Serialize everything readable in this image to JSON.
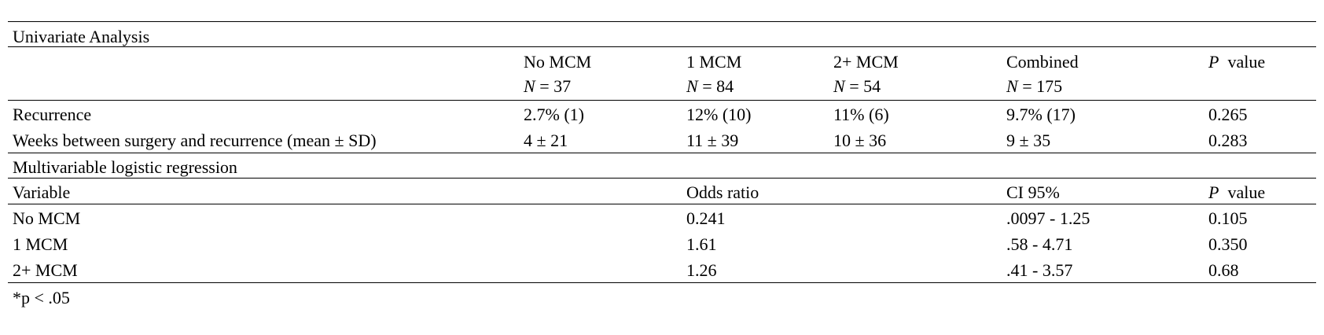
{
  "univariate": {
    "title": "Univariate Analysis",
    "headers": {
      "no_mcm": "No MCM",
      "no_mcm_n": "= 37",
      "one_mcm": "1 MCM",
      "one_mcm_n": "= 84",
      "two_mcm": "2+ MCM",
      "two_mcm_n": "= 54",
      "combined": "Combined",
      "combined_n": "= 175",
      "n_symbol": "N",
      "p_symbol": "P",
      "p_value": "value"
    },
    "rows": [
      {
        "label": "Recurrence",
        "no_mcm": "2.7% (1)",
        "one_mcm": "12% (10)",
        "two_mcm": "11% (6)",
        "combined": "9.7% (17)",
        "p": "0.265"
      },
      {
        "label": "Weeks between surgery and recurrence (mean ± SD)",
        "no_mcm": "4 ± 21",
        "one_mcm": "11 ± 39",
        "two_mcm": "10 ± 36",
        "combined": "9 ± 35",
        "p": "0.283"
      }
    ]
  },
  "multivariable": {
    "title": "Multivariable logistic regression",
    "headers": {
      "variable": "Variable",
      "odds": "Odds ratio",
      "ci": "CI 95%",
      "p_symbol": "P",
      "p_value": "value"
    },
    "rows": [
      {
        "variable": "No MCM",
        "odds": "0.241",
        "ci": ".0097 - 1.25",
        "p": "0.105"
      },
      {
        "variable": "1 MCM",
        "odds": "1.61",
        "ci": ".58 - 4.71",
        "p": "0.350"
      },
      {
        "variable": "2+ MCM",
        "odds": "1.26",
        "ci": ".41 - 3.57",
        "p": "0.68"
      }
    ]
  },
  "footnote": "*p < .05"
}
